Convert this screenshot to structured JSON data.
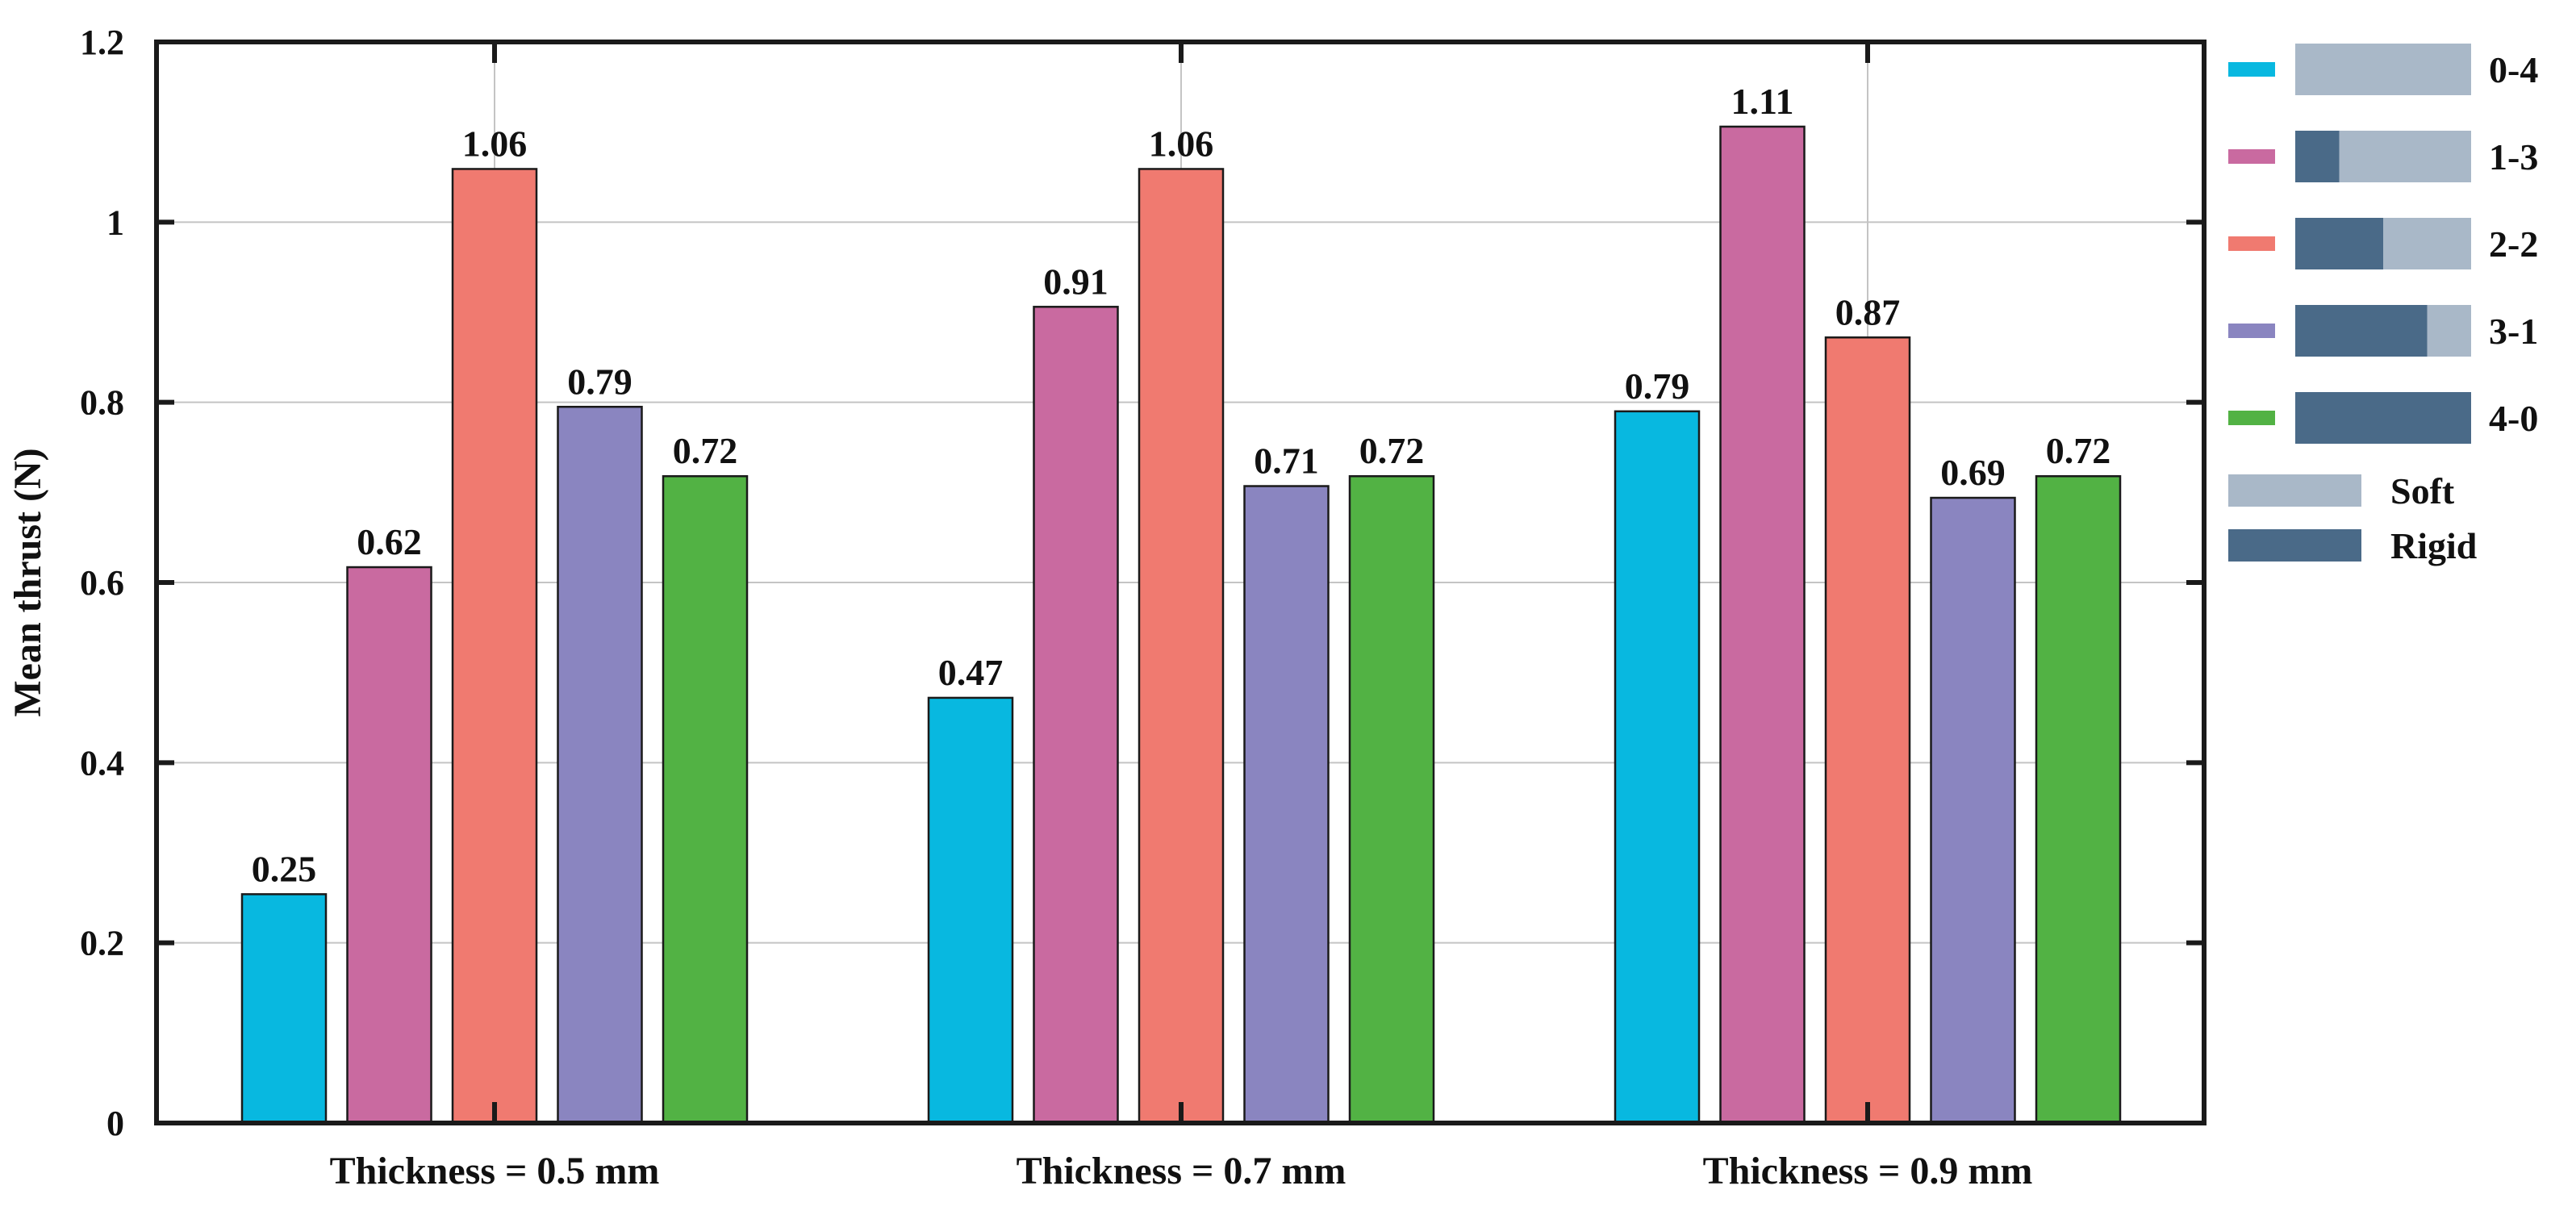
{
  "chart_data": {
    "type": "bar",
    "title": "",
    "xlabel": "",
    "ylabel": "Mean thrust (N)",
    "ylim": [
      0,
      1.2
    ],
    "yticks": [
      0,
      0.2,
      0.4,
      0.6,
      0.8,
      1,
      1.2
    ],
    "ytick_labels": [
      "0",
      "0.2",
      "0.4",
      "0.6",
      "0.8",
      "1",
      "1.2"
    ],
    "grid": true,
    "categories": [
      "Thickness = 0.5 mm",
      "Thickness = 0.7 mm",
      "Thickness = 0.9 mm"
    ],
    "series": [
      {
        "name": "0-4",
        "color": "#08b8e0",
        "rigid_fraction": 0.0,
        "values": [
          0.254,
          0.472,
          0.79
        ],
        "labels": [
          "0.25",
          "0.47",
          "0.79"
        ]
      },
      {
        "name": "1-3",
        "color": "#c96aa0",
        "rigid_fraction": 0.25,
        "values": [
          0.617,
          0.906,
          1.106
        ],
        "labels": [
          "0.62",
          "0.91",
          "1.11"
        ]
      },
      {
        "name": "2-2",
        "color": "#f07a70",
        "rigid_fraction": 0.5,
        "values": [
          1.059,
          1.059,
          0.872
        ],
        "labels": [
          "1.06",
          "1.06",
          "0.87"
        ]
      },
      {
        "name": "3-1",
        "color": "#8a85c0",
        "rigid_fraction": 0.75,
        "values": [
          0.795,
          0.707,
          0.694
        ],
        "labels": [
          "0.79",
          "0.71",
          "0.69"
        ]
      },
      {
        "name": "4-0",
        "color": "#52b244",
        "rigid_fraction": 1.0,
        "values": [
          0.718,
          0.718,
          0.718
        ],
        "labels": [
          "0.72",
          "0.72",
          "0.72"
        ]
      }
    ],
    "material_legend": [
      {
        "name": "Soft",
        "color": "#a9b8c8"
      },
      {
        "name": "Rigid",
        "color": "#4a6a88"
      }
    ],
    "legend_position": "right"
  }
}
